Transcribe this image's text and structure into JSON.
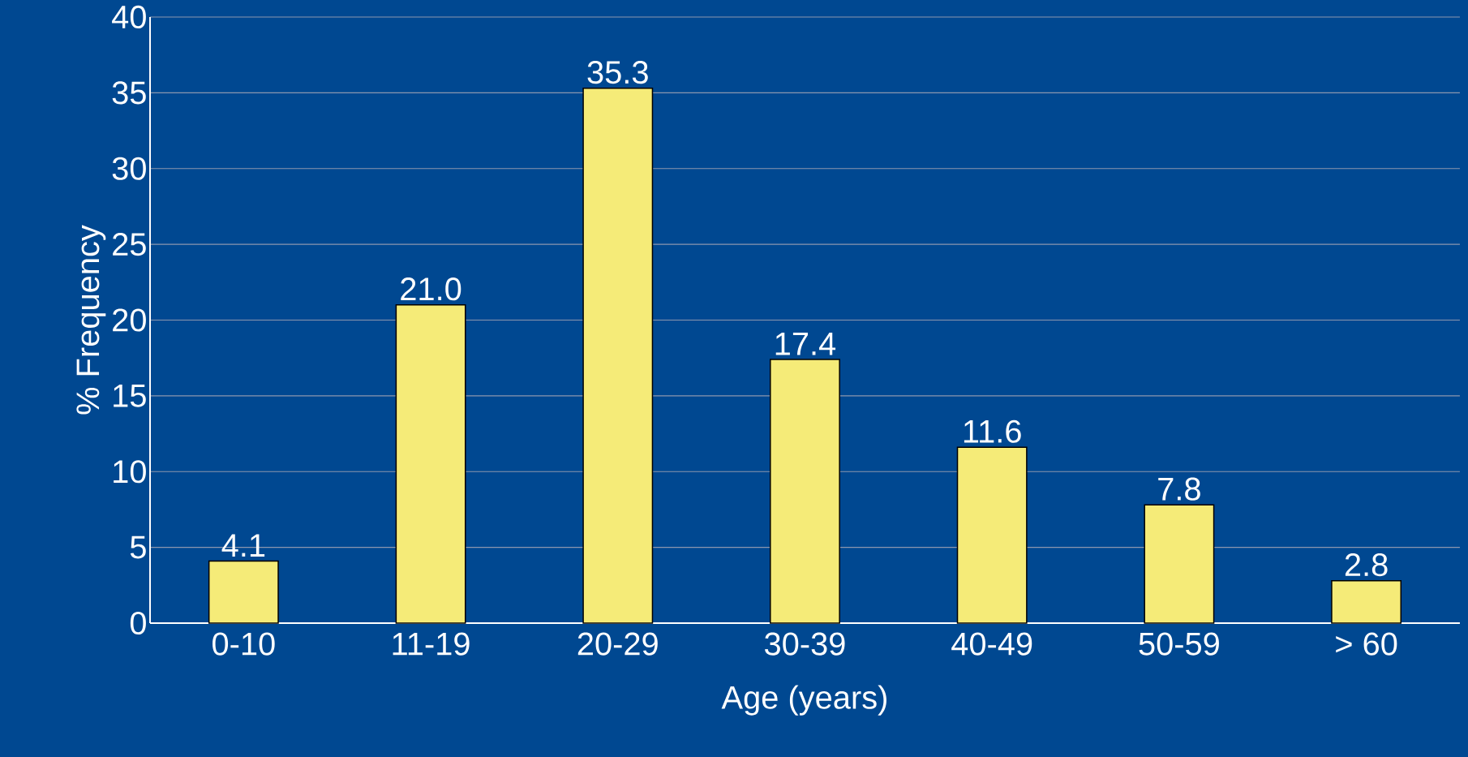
{
  "chart_data": {
    "type": "bar",
    "xlabel": "Age (years)",
    "ylabel": "% Frequency",
    "categories": [
      "0-10",
      "11-19",
      "20-29",
      "30-39",
      "40-49",
      "50-59",
      "> 60"
    ],
    "values": [
      4.1,
      21.0,
      35.3,
      17.4,
      11.6,
      7.8,
      2.8
    ],
    "value_labels": [
      "4.1",
      "21.0",
      "35.3",
      "17.4",
      "11.6",
      "7.8",
      "2.8"
    ],
    "color": "#f5eb78",
    "ylim": [
      0,
      40
    ],
    "yticks": [
      0,
      5,
      10,
      15,
      20,
      25,
      30,
      35,
      40
    ],
    "grid": "y"
  }
}
